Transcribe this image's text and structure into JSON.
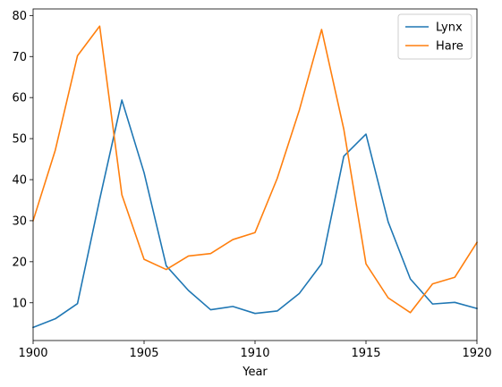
{
  "chart_data": {
    "type": "line",
    "title": "",
    "xlabel": "Year",
    "ylabel": "",
    "xlim": [
      1900,
      1920
    ],
    "ylim": [
      0.8,
      81.6
    ],
    "x": [
      1900,
      1901,
      1902,
      1903,
      1904,
      1905,
      1906,
      1907,
      1908,
      1909,
      1910,
      1911,
      1912,
      1913,
      1914,
      1915,
      1916,
      1917,
      1918,
      1919,
      1920
    ],
    "x_ticks": [
      1900,
      1905,
      1910,
      1915,
      1920
    ],
    "y_ticks": [
      10,
      20,
      30,
      40,
      50,
      60,
      70,
      80
    ],
    "grid": false,
    "legend_position": "top-right",
    "series": [
      {
        "name": "Lynx",
        "color": "#1f77b4",
        "values": [
          4.0,
          6.1,
          9.8,
          35.2,
          59.4,
          41.7,
          19.0,
          13.0,
          8.3,
          9.1,
          7.4,
          8.0,
          12.3,
          19.5,
          45.7,
          51.1,
          29.7,
          15.8,
          9.7,
          10.1,
          8.6
        ]
      },
      {
        "name": "Hare",
        "color": "#ff7f0e",
        "values": [
          30.0,
          47.2,
          70.2,
          77.4,
          36.3,
          20.6,
          18.1,
          21.4,
          22.0,
          25.4,
          27.1,
          40.3,
          57.0,
          76.6,
          52.3,
          19.5,
          11.2,
          7.6,
          14.6,
          16.2,
          24.7
        ]
      }
    ]
  }
}
